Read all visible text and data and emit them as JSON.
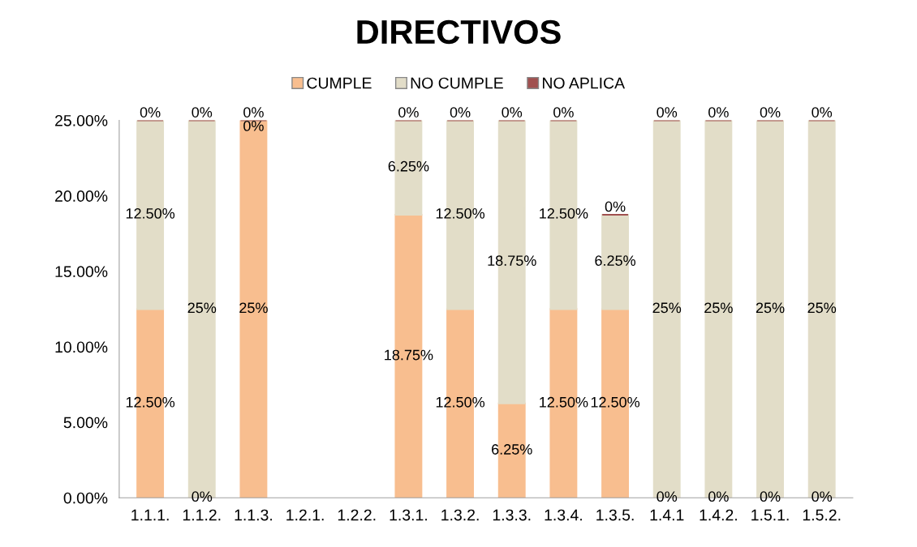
{
  "chart_data": {
    "type": "bar",
    "stacked": true,
    "title": "DIRECTIVOS",
    "categories": [
      "1.1.1.",
      "1.1.2.",
      "1.1.3.",
      "1.2.1.",
      "1.2.2.",
      "1.3.1.",
      "1.3.2.",
      "1.3.3.",
      "1.3.4.",
      "1.3.5.",
      "1.4.1",
      "1.4.2.",
      "1.5.1.",
      "1.5.2."
    ],
    "series": [
      {
        "name": "CUMPLE",
        "color": "#f8be8f",
        "values": [
          12.5,
          0,
          25,
          null,
          null,
          18.75,
          12.5,
          6.25,
          12.5,
          12.5,
          0,
          0,
          0,
          0
        ],
        "value_labels": [
          "12.50%",
          "0%",
          "25%",
          null,
          null,
          "18.75%",
          "12.50%",
          "6.25%",
          "12.50%",
          "12.50%",
          "0%",
          "0%",
          "0%",
          "0%"
        ]
      },
      {
        "name": "NO CUMPLE",
        "color": "#e2ddc8",
        "values": [
          12.5,
          25,
          0,
          null,
          null,
          6.25,
          12.5,
          18.75,
          12.5,
          6.25,
          25,
          25,
          25,
          25
        ],
        "value_labels": [
          "12.50%",
          "25%",
          "0%",
          null,
          null,
          "6.25%",
          "12.50%",
          "18.75%",
          "12.50%",
          "6.25%",
          "25%",
          "25%",
          "25%",
          "25%"
        ]
      },
      {
        "name": "NO APLICA",
        "color": "#a0504f",
        "values": [
          0,
          0,
          0,
          null,
          null,
          0,
          0,
          0,
          0,
          0,
          0,
          0,
          0,
          0
        ],
        "value_labels": [
          "0%",
          "0%",
          "0%",
          null,
          null,
          "0%",
          "0%",
          "0%",
          "0%",
          "0%",
          "0%",
          "0%",
          "0%",
          "0%"
        ]
      }
    ],
    "ylim": [
      0,
      25
    ],
    "yticks": [
      {
        "value": 0,
        "label": "0.00%"
      },
      {
        "value": 5,
        "label": "5.00%"
      },
      {
        "value": 10,
        "label": "10.00%"
      },
      {
        "value": 15,
        "label": "15.00%"
      },
      {
        "value": 20,
        "label": "20.00%"
      },
      {
        "value": 25,
        "label": "25.00%"
      }
    ],
    "legend": "top",
    "grid": false
  }
}
